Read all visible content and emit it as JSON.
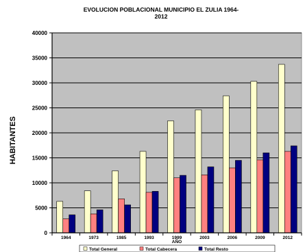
{
  "chart_data": {
    "type": "bar",
    "title_line1": "EVOLUCION POBLACIONAL MUNICIPIO EL ZULIA 1964-",
    "title_line2": "2012",
    "xlabel": "AÑO",
    "ylabel": "HABITANTES",
    "categories": [
      "1964",
      "1973",
      "1985",
      "1993",
      "1999",
      "2003",
      "2006",
      "2009",
      "2012"
    ],
    "ylim": [
      0,
      40000
    ],
    "yticks": [
      "0",
      "5000",
      "10000",
      "15000",
      "20000",
      "25000",
      "30000",
      "35000",
      "40000"
    ],
    "grid": true,
    "legend_position": "bottom",
    "series": [
      {
        "name": "Total General",
        "color": "#ffffcc",
        "values": [
          6300,
          8400,
          12400,
          16300,
          22400,
          24600,
          27400,
          30300,
          33700
        ]
      },
      {
        "name": "Total Cabecera",
        "color": "#ff8080",
        "values": [
          2800,
          3800,
          6800,
          8100,
          11000,
          11600,
          13000,
          14600,
          16300
        ]
      },
      {
        "name": "Total Resto",
        "color": "#000080",
        "values": [
          3600,
          4600,
          5600,
          8300,
          11500,
          13200,
          14500,
          16000,
          17400
        ]
      }
    ],
    "plot_background": "#c0c0c0"
  }
}
